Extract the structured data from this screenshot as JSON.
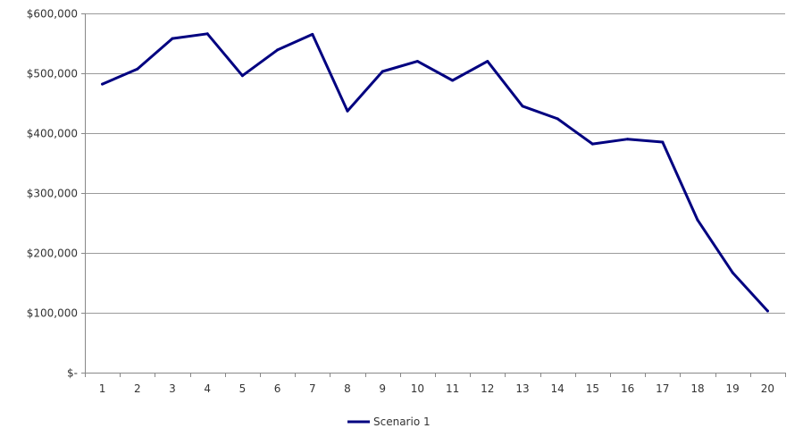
{
  "chart_data": {
    "type": "line",
    "categories": [
      "1",
      "2",
      "3",
      "4",
      "5",
      "6",
      "7",
      "8",
      "9",
      "10",
      "11",
      "12",
      "13",
      "14",
      "15",
      "16",
      "17",
      "18",
      "19",
      "20"
    ],
    "series": [
      {
        "name": "Scenario 1",
        "color": "#000080",
        "values": [
          482000,
          507000,
          558000,
          566000,
          496000,
          539000,
          565000,
          437000,
          503000,
          520000,
          488000,
          520000,
          445000,
          424000,
          382000,
          390000,
          385000,
          255000,
          167000,
          103000
        ]
      }
    ],
    "yticks": [
      0,
      100000,
      200000,
      300000,
      400000,
      500000,
      600000
    ],
    "ytick_labels": [
      "$-",
      "$100,000",
      "$200,000",
      "$300,000",
      "$400,000",
      "$500,000",
      "$600,000"
    ],
    "ylim": [
      0,
      600000
    ],
    "grid": true,
    "legend_position": "bottom",
    "title": "",
    "xlabel": "",
    "ylabel": ""
  }
}
